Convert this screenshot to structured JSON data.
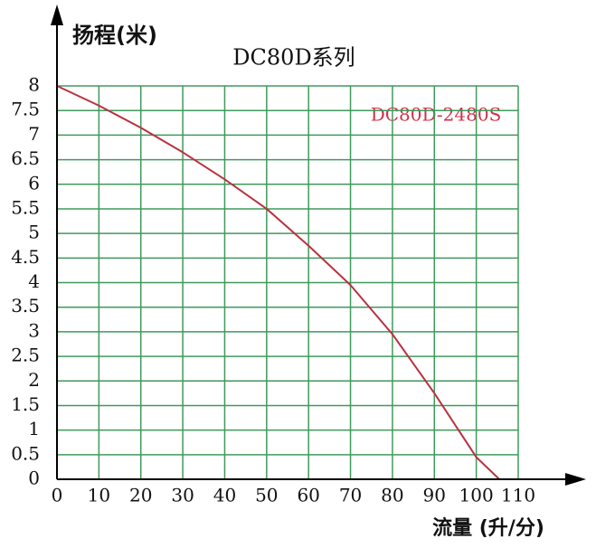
{
  "chart_data": {
    "type": "line",
    "title": "DC80D系列",
    "y_label": "扬程(米)",
    "x_label": "流量 (升/分)",
    "x": [
      0,
      10,
      20,
      30,
      40,
      50,
      60,
      70,
      80,
      90,
      100,
      105.5
    ],
    "series": [
      {
        "name": "DC80D-2480S",
        "color": "#b8323f",
        "values": [
          8,
          7.6,
          7.15,
          6.65,
          6.1,
          5.5,
          4.75,
          3.95,
          2.95,
          1.75,
          0.45,
          0
        ]
      }
    ],
    "xlim": [
      0,
      110
    ],
    "ylim": [
      0,
      8
    ],
    "xticks": [
      0,
      10,
      20,
      30,
      40,
      50,
      60,
      70,
      80,
      90,
      100,
      110
    ],
    "yticks": [
      0,
      0.5,
      1,
      1.5,
      2,
      2.5,
      3,
      3.5,
      4,
      4.5,
      5,
      5.5,
      6,
      6.5,
      7,
      7.5,
      8
    ],
    "grid": true,
    "grid_color": "#3f9a5c"
  }
}
